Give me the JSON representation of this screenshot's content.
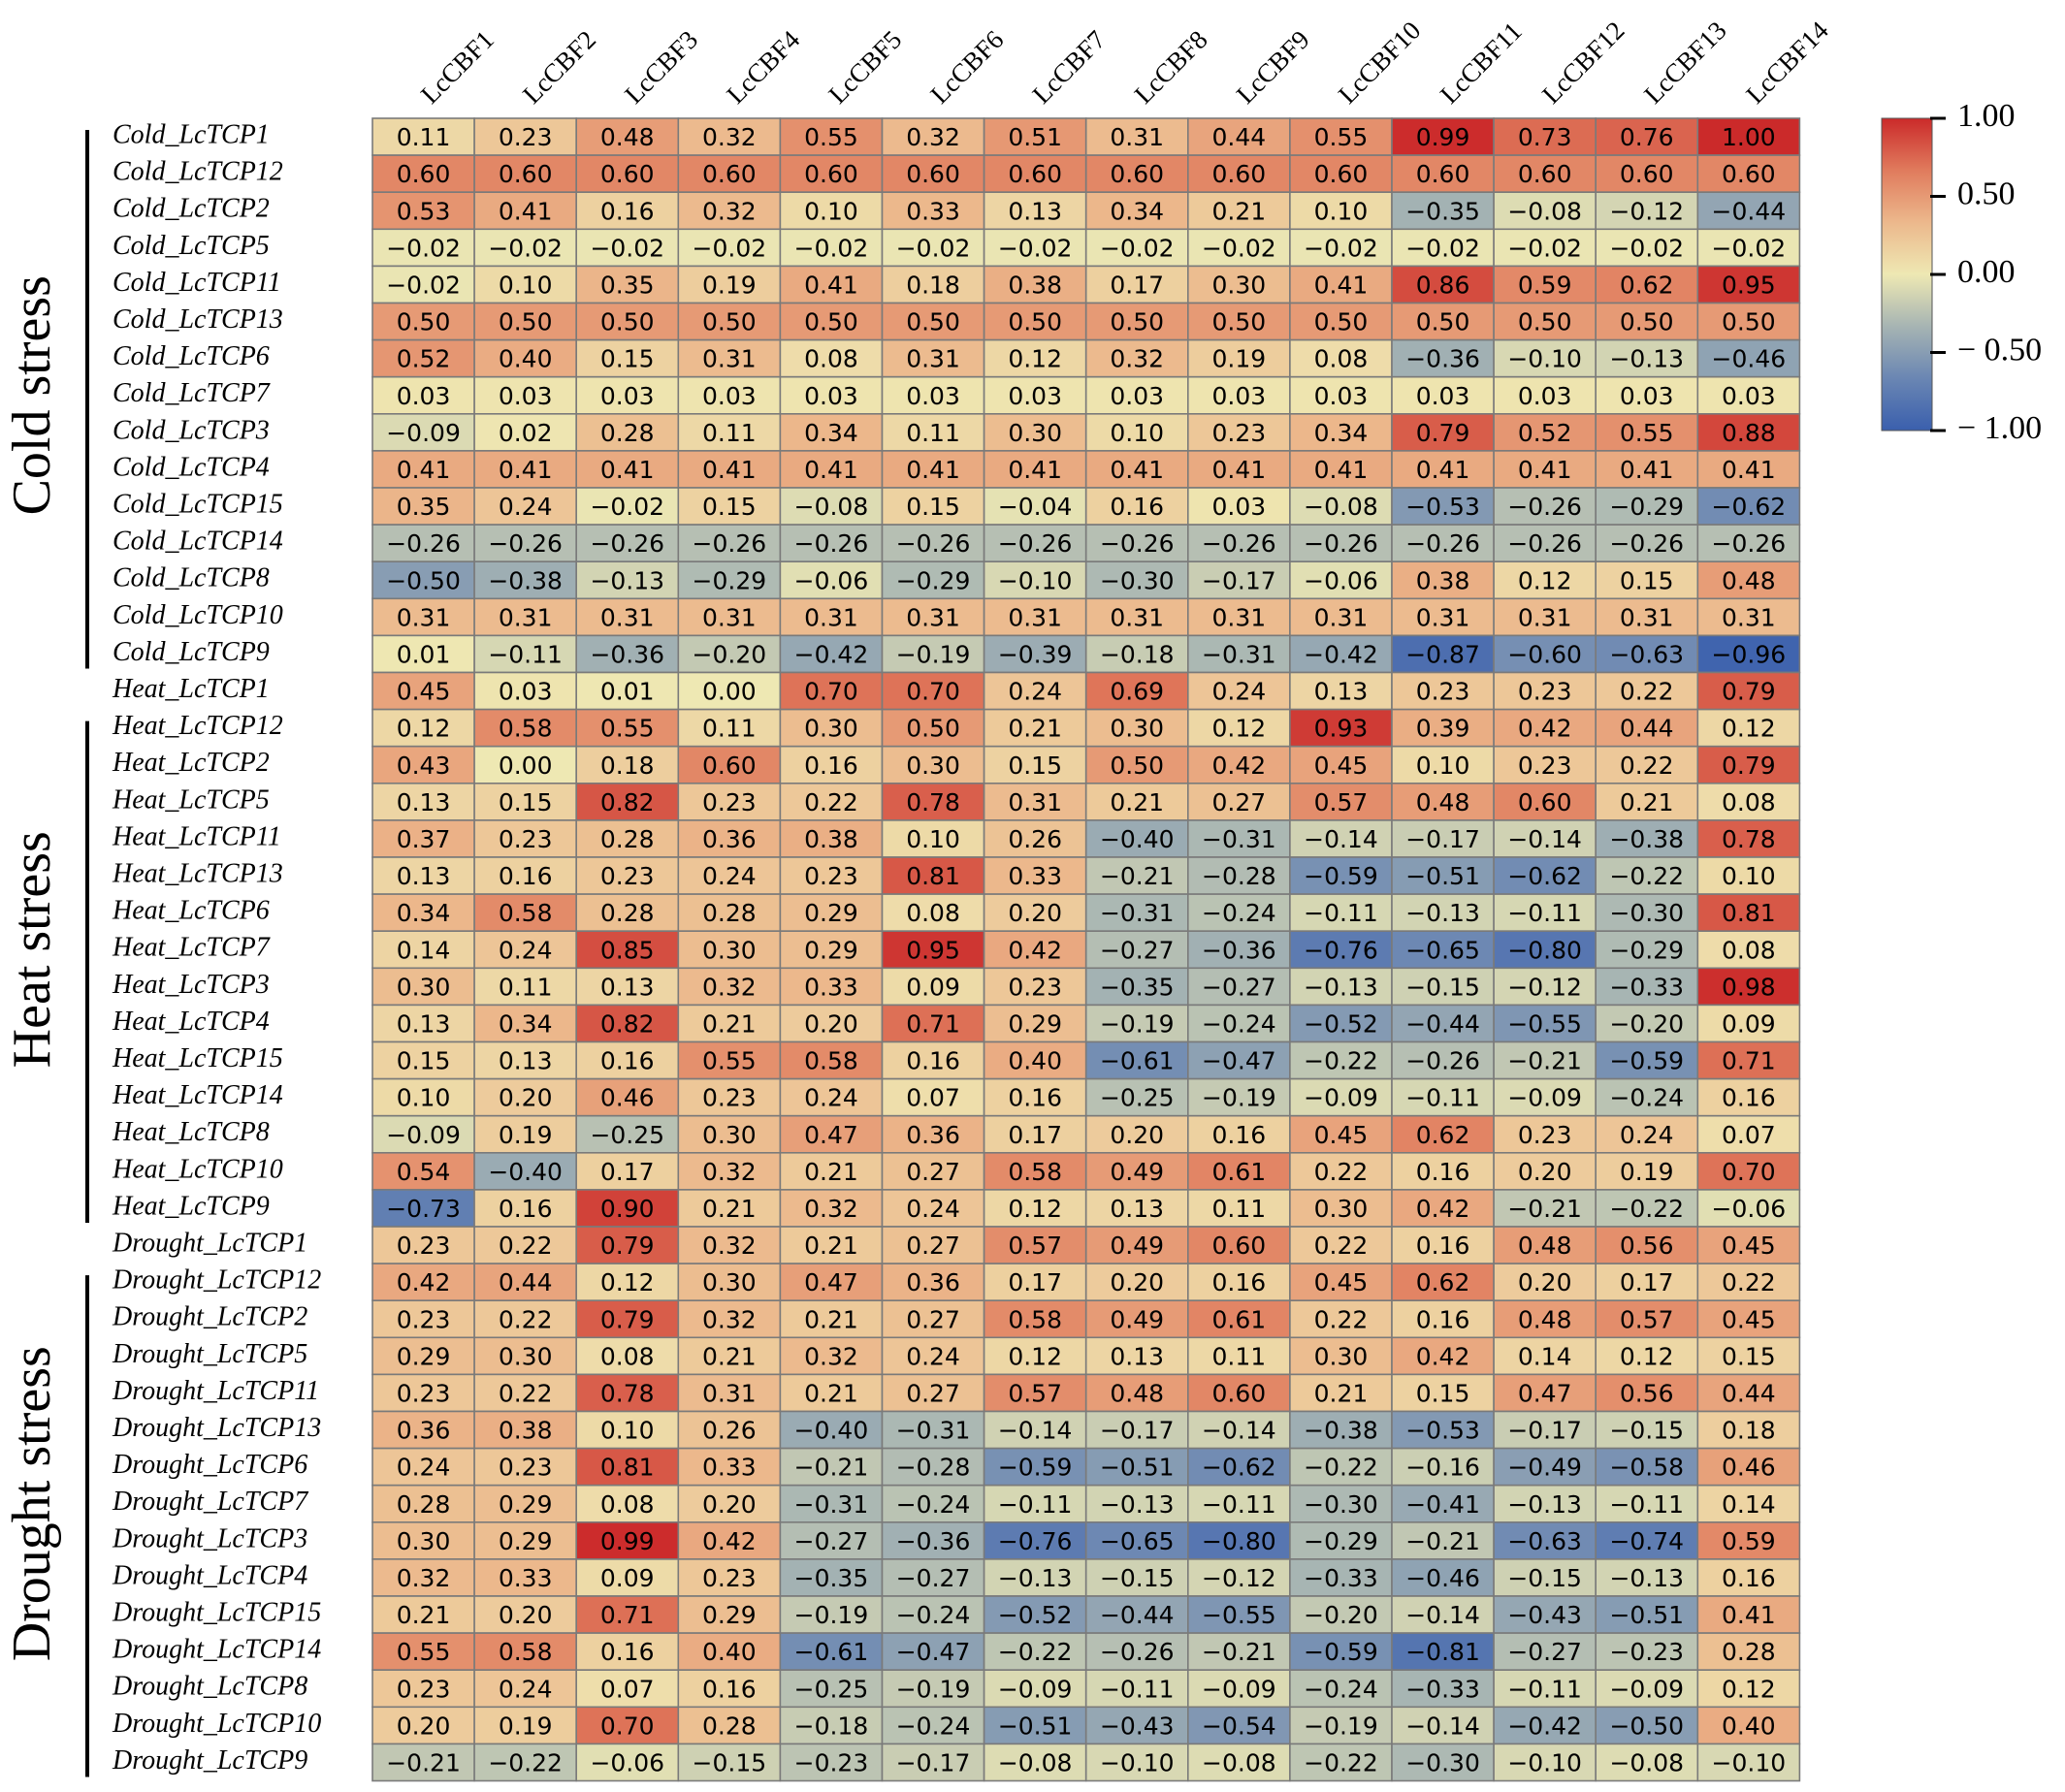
{
  "chart_data": {
    "type": "heatmap",
    "title": "",
    "columns": [
      "LcCBF1",
      "LcCBF2",
      "LcCBF3",
      "LcCBF4",
      "LcCBF5",
      "LcCBF6",
      "LcCBF7",
      "LcCBF8",
      "LcCBF9",
      "LcCBF10",
      "LcCBF11",
      "LcCBF12",
      "LcCBF13",
      "LcCBF14"
    ],
    "rows": [
      "Cold_LcTCP1",
      "Cold_LcTCP12",
      "Cold_LcTCP2",
      "Cold_LcTCP5",
      "Cold_LcTCP11",
      "Cold_LcTCP13",
      "Cold_LcTCP6",
      "Cold_LcTCP7",
      "Cold_LcTCP3",
      "Cold_LcTCP4",
      "Cold_LcTCP15",
      "Cold_LcTCP14",
      "Cold_LcTCP8",
      "Cold_LcTCP10",
      "Cold_LcTCP9",
      "Heat_LcTCP1",
      "Heat_LcTCP12",
      "Heat_LcTCP2",
      "Heat_LcTCP5",
      "Heat_LcTCP11",
      "Heat_LcTCP13",
      "Heat_LcTCP6",
      "Heat_LcTCP7",
      "Heat_LcTCP3",
      "Heat_LcTCP4",
      "Heat_LcTCP15",
      "Heat_LcTCP14",
      "Heat_LcTCP8",
      "Heat_LcTCP10",
      "Heat_LcTCP9",
      "Drought_LcTCP1",
      "Drought_LcTCP12",
      "Drought_LcTCP2",
      "Drought_LcTCP5",
      "Drought_LcTCP11",
      "Drought_LcTCP13",
      "Drought_LcTCP6",
      "Drought_LcTCP7",
      "Drought_LcTCP3",
      "Drought_LcTCP4",
      "Drought_LcTCP15",
      "Drought_LcTCP14",
      "Drought_LcTCP8",
      "Drought_LcTCP10",
      "Drought_LcTCP9"
    ],
    "values": [
      [
        0.11,
        0.23,
        0.48,
        0.32,
        0.55,
        0.32,
        0.51,
        0.31,
        0.44,
        0.55,
        0.99,
        0.73,
        0.76,
        1.0
      ],
      [
        0.6,
        0.6,
        0.6,
        0.6,
        0.6,
        0.6,
        0.6,
        0.6,
        0.6,
        0.6,
        0.6,
        0.6,
        0.6,
        0.6
      ],
      [
        0.53,
        0.41,
        0.16,
        0.32,
        0.1,
        0.33,
        0.13,
        0.34,
        0.21,
        0.1,
        -0.35,
        -0.08,
        -0.12,
        -0.44
      ],
      [
        -0.02,
        -0.02,
        -0.02,
        -0.02,
        -0.02,
        -0.02,
        -0.02,
        -0.02,
        -0.02,
        -0.02,
        -0.02,
        -0.02,
        -0.02,
        -0.02
      ],
      [
        -0.02,
        0.1,
        0.35,
        0.19,
        0.41,
        0.18,
        0.38,
        0.17,
        0.3,
        0.41,
        0.86,
        0.59,
        0.62,
        0.95
      ],
      [
        0.5,
        0.5,
        0.5,
        0.5,
        0.5,
        0.5,
        0.5,
        0.5,
        0.5,
        0.5,
        0.5,
        0.5,
        0.5,
        0.5
      ],
      [
        0.52,
        0.4,
        0.15,
        0.31,
        0.08,
        0.31,
        0.12,
        0.32,
        0.19,
        0.08,
        -0.36,
        -0.1,
        -0.13,
        -0.46
      ],
      [
        0.03,
        0.03,
        0.03,
        0.03,
        0.03,
        0.03,
        0.03,
        0.03,
        0.03,
        0.03,
        0.03,
        0.03,
        0.03,
        0.03
      ],
      [
        -0.09,
        0.02,
        0.28,
        0.11,
        0.34,
        0.11,
        0.3,
        0.1,
        0.23,
        0.34,
        0.79,
        0.52,
        0.55,
        0.88
      ],
      [
        0.41,
        0.41,
        0.41,
        0.41,
        0.41,
        0.41,
        0.41,
        0.41,
        0.41,
        0.41,
        0.41,
        0.41,
        0.41,
        0.41
      ],
      [
        0.35,
        0.24,
        -0.02,
        0.15,
        -0.08,
        0.15,
        -0.04,
        0.16,
        0.03,
        -0.08,
        -0.53,
        -0.26,
        -0.29,
        -0.62
      ],
      [
        -0.26,
        -0.26,
        -0.26,
        -0.26,
        -0.26,
        -0.26,
        -0.26,
        -0.26,
        -0.26,
        -0.26,
        -0.26,
        -0.26,
        -0.26,
        -0.26
      ],
      [
        -0.5,
        -0.38,
        -0.13,
        -0.29,
        -0.06,
        -0.29,
        -0.1,
        -0.3,
        -0.17,
        -0.06,
        0.38,
        0.12,
        0.15,
        0.48
      ],
      [
        0.31,
        0.31,
        0.31,
        0.31,
        0.31,
        0.31,
        0.31,
        0.31,
        0.31,
        0.31,
        0.31,
        0.31,
        0.31,
        0.31
      ],
      [
        0.01,
        -0.11,
        -0.36,
        -0.2,
        -0.42,
        -0.19,
        -0.39,
        -0.18,
        -0.31,
        -0.42,
        -0.87,
        -0.6,
        -0.63,
        -0.96
      ],
      [
        0.45,
        0.03,
        0.01,
        0.0,
        0.7,
        0.7,
        0.24,
        0.69,
        0.24,
        0.13,
        0.23,
        0.23,
        0.22,
        0.79
      ],
      [
        0.12,
        0.58,
        0.55,
        0.11,
        0.3,
        0.5,
        0.21,
        0.3,
        0.12,
        0.93,
        0.39,
        0.42,
        0.44,
        0.12
      ],
      [
        0.43,
        0.0,
        0.18,
        0.6,
        0.16,
        0.3,
        0.15,
        0.5,
        0.42,
        0.45,
        0.1,
        0.23,
        0.22,
        0.79
      ],
      [
        0.13,
        0.15,
        0.82,
        0.23,
        0.22,
        0.78,
        0.31,
        0.21,
        0.27,
        0.57,
        0.48,
        0.6,
        0.21,
        0.08
      ],
      [
        0.37,
        0.23,
        0.28,
        0.36,
        0.38,
        0.1,
        0.26,
        -0.4,
        -0.31,
        -0.14,
        -0.17,
        -0.14,
        -0.38,
        0.78
      ],
      [
        0.13,
        0.16,
        0.23,
        0.24,
        0.23,
        0.81,
        0.33,
        -0.21,
        -0.28,
        -0.59,
        -0.51,
        -0.62,
        -0.22,
        0.1
      ],
      [
        0.34,
        0.58,
        0.28,
        0.28,
        0.29,
        0.08,
        0.2,
        -0.31,
        -0.24,
        -0.11,
        -0.13,
        -0.11,
        -0.3,
        0.81
      ],
      [
        0.14,
        0.24,
        0.85,
        0.3,
        0.29,
        0.95,
        0.42,
        -0.27,
        -0.36,
        -0.76,
        -0.65,
        -0.8,
        -0.29,
        0.08
      ],
      [
        0.3,
        0.11,
        0.13,
        0.32,
        0.33,
        0.09,
        0.23,
        -0.35,
        -0.27,
        -0.13,
        -0.15,
        -0.12,
        -0.33,
        0.98
      ],
      [
        0.13,
        0.34,
        0.82,
        0.21,
        0.2,
        0.71,
        0.29,
        -0.19,
        -0.24,
        -0.52,
        -0.44,
        -0.55,
        -0.2,
        0.09
      ],
      [
        0.15,
        0.13,
        0.16,
        0.55,
        0.58,
        0.16,
        0.4,
        -0.61,
        -0.47,
        -0.22,
        -0.26,
        -0.21,
        -0.59,
        0.71
      ],
      [
        0.1,
        0.2,
        0.46,
        0.23,
        0.24,
        0.07,
        0.16,
        -0.25,
        -0.19,
        -0.09,
        -0.11,
        -0.09,
        -0.24,
        0.16
      ],
      [
        -0.09,
        0.19,
        -0.25,
        0.3,
        0.47,
        0.36,
        0.17,
        0.2,
        0.16,
        0.45,
        0.62,
        0.23,
        0.24,
        0.07
      ],
      [
        0.54,
        -0.4,
        0.17,
        0.32,
        0.21,
        0.27,
        0.58,
        0.49,
        0.61,
        0.22,
        0.16,
        0.2,
        0.19,
        0.7
      ],
      [
        -0.73,
        0.16,
        0.9,
        0.21,
        0.32,
        0.24,
        0.12,
        0.13,
        0.11,
        0.3,
        0.42,
        -0.21,
        -0.22,
        -0.06
      ],
      [
        0.23,
        0.22,
        0.79,
        0.32,
        0.21,
        0.27,
        0.57,
        0.49,
        0.6,
        0.22,
        0.16,
        0.48,
        0.56,
        0.45
      ],
      [
        0.42,
        0.44,
        0.12,
        0.3,
        0.47,
        0.36,
        0.17,
        0.2,
        0.16,
        0.45,
        0.62,
        0.2,
        0.17,
        0.22
      ],
      [
        0.23,
        0.22,
        0.79,
        0.32,
        0.21,
        0.27,
        0.58,
        0.49,
        0.61,
        0.22,
        0.16,
        0.48,
        0.57,
        0.45
      ],
      [
        0.29,
        0.3,
        0.08,
        0.21,
        0.32,
        0.24,
        0.12,
        0.13,
        0.11,
        0.3,
        0.42,
        0.14,
        0.12,
        0.15
      ],
      [
        0.23,
        0.22,
        0.78,
        0.31,
        0.21,
        0.27,
        0.57,
        0.48,
        0.6,
        0.21,
        0.15,
        0.47,
        0.56,
        0.44
      ],
      [
        0.36,
        0.38,
        0.1,
        0.26,
        -0.4,
        -0.31,
        -0.14,
        -0.17,
        -0.14,
        -0.38,
        -0.53,
        -0.17,
        -0.15,
        0.18
      ],
      [
        0.24,
        0.23,
        0.81,
        0.33,
        -0.21,
        -0.28,
        -0.59,
        -0.51,
        -0.62,
        -0.22,
        -0.16,
        -0.49,
        -0.58,
        0.46
      ],
      [
        0.28,
        0.29,
        0.08,
        0.2,
        -0.31,
        -0.24,
        -0.11,
        -0.13,
        -0.11,
        -0.3,
        -0.41,
        -0.13,
        -0.11,
        0.14
      ],
      [
        0.3,
        0.29,
        0.99,
        0.42,
        -0.27,
        -0.36,
        -0.76,
        -0.65,
        -0.8,
        -0.29,
        -0.21,
        -0.63,
        -0.74,
        0.59
      ],
      [
        0.32,
        0.33,
        0.09,
        0.23,
        -0.35,
        -0.27,
        -0.13,
        -0.15,
        -0.12,
        -0.33,
        -0.46,
        -0.15,
        -0.13,
        0.16
      ],
      [
        0.21,
        0.2,
        0.71,
        0.29,
        -0.19,
        -0.24,
        -0.52,
        -0.44,
        -0.55,
        -0.2,
        -0.14,
        -0.43,
        -0.51,
        0.41
      ],
      [
        0.55,
        0.58,
        0.16,
        0.4,
        -0.61,
        -0.47,
        -0.22,
        -0.26,
        -0.21,
        -0.59,
        -0.81,
        -0.27,
        -0.23,
        0.28
      ],
      [
        0.23,
        0.24,
        0.07,
        0.16,
        -0.25,
        -0.19,
        -0.09,
        -0.11,
        -0.09,
        -0.24,
        -0.33,
        -0.11,
        -0.09,
        0.12
      ],
      [
        0.2,
        0.19,
        0.7,
        0.28,
        -0.18,
        -0.24,
        -0.51,
        -0.43,
        -0.54,
        -0.19,
        -0.14,
        -0.42,
        -0.5,
        0.4
      ],
      [
        -0.21,
        -0.22,
        -0.06,
        -0.15,
        -0.23,
        -0.17,
        -0.08,
        -0.1,
        -0.08,
        -0.22,
        -0.3,
        -0.1,
        -0.08,
        -0.1
      ]
    ],
    "groups": [
      {
        "label": "Cold stress",
        "first_row": 0,
        "last_row": 14,
        "bracket_first_row": 0,
        "bracket_last_row": 14
      },
      {
        "label": "Heat stress",
        "first_row": 15,
        "last_row": 29,
        "bracket_first_row": 16,
        "bracket_last_row": 29
      },
      {
        "label": "Drought stress",
        "first_row": 30,
        "last_row": 44,
        "bracket_first_row": 31,
        "bracket_last_row": 44
      }
    ],
    "colorbar": {
      "range": [
        -1.0,
        1.0
      ],
      "ticks": [
        1.0,
        0.5,
        0.0,
        -0.5,
        -1.0
      ],
      "tick_labels": [
        "1.00",
        "0.50",
        "0.00",
        "− 0.50",
        "− 1.00"
      ],
      "colormap": [
        "#3a5fad",
        "#6a86b3",
        "#a6b4b3",
        "#eee8b3",
        "#ecb88c",
        "#e07b5d",
        "#cb2a2a"
      ],
      "placement": "right"
    },
    "value_range": [
      -1.0,
      1.0
    ],
    "xlabel": "",
    "ylabel": ""
  },
  "colors": {
    "cell_border": "#7a7a7a",
    "text": "#000000"
  }
}
